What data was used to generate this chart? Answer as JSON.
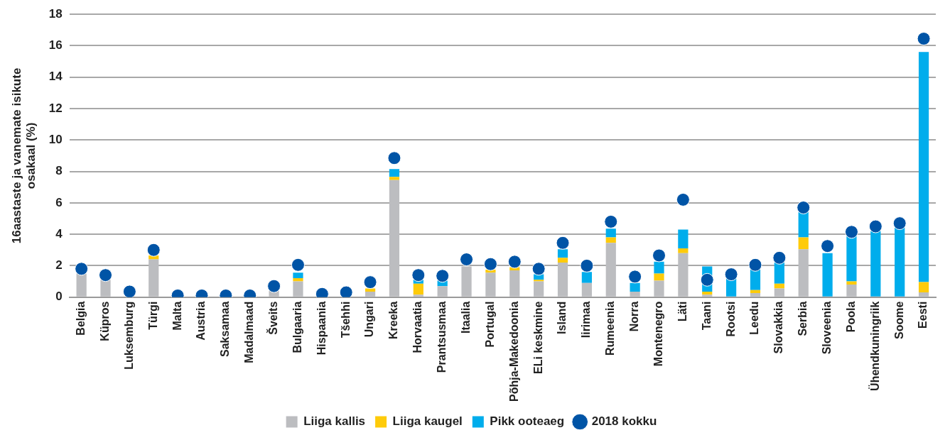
{
  "chart_data": {
    "type": "bar",
    "stacked": true,
    "ylabel": "16aastaste ja vanemate isikute\nosakaal (%)",
    "categories": [
      "Belgia",
      "Küpros",
      "Luksemburg",
      "Türgi",
      "Malta",
      "Austria",
      "Saksamaa",
      "Madalmaad",
      "Šveits",
      "Bulgaaria",
      "Hispaania",
      "Tšehhi",
      "Ungari",
      "Kreeka",
      "Horvaatia",
      "Prantsusmaa",
      "Itaalia",
      "Portugal",
      "Põhja-Makedoonia",
      "ELi keskmine",
      "Island",
      "Iirimaa",
      "Rumeenia",
      "Norra",
      "Montenegro",
      "Läti",
      "Taani",
      "Rootsi",
      "Leedu",
      "Slovakkia",
      "Serbia",
      "Sloveenia",
      "Poola",
      "Ühendkuningriik",
      "Soome",
      "Eesti"
    ],
    "series": [
      {
        "name": "Liiga kallis",
        "color": "#bcbdc0",
        "values": [
          1.5,
          1.1,
          0,
          2.4,
          0,
          0,
          0,
          0,
          0.4,
          1.0,
          0,
          0,
          0.35,
          7.45,
          0.15,
          0.7,
          1.95,
          1.55,
          1.7,
          1.0,
          2.2,
          0.9,
          3.45,
          0.35,
          1.05,
          2.8,
          0.15,
          0,
          0.25,
          0.55,
          3.05,
          0,
          0.8,
          0,
          0,
          0.3
        ]
      },
      {
        "name": "Liiga kaugel",
        "color": "#fecb0a",
        "values": [
          0,
          0,
          0,
          0.25,
          0,
          0,
          0,
          0,
          0,
          0.2,
          0,
          0,
          0.2,
          0.2,
          0.7,
          0,
          0,
          0.2,
          0.2,
          0.1,
          0.3,
          0,
          0.35,
          0,
          0.45,
          0.3,
          0.2,
          0,
          0.2,
          0.3,
          0.75,
          0,
          0.2,
          0,
          0,
          0.65
        ]
      },
      {
        "name": "Pikk ooteaeg",
        "color": "#00adec",
        "values": [
          0,
          0,
          0,
          0,
          0,
          0,
          0,
          0,
          0,
          0.35,
          0,
          0,
          0,
          0.5,
          0.25,
          0.35,
          null,
          0,
          0,
          0.35,
          0.55,
          0.7,
          0.55,
          0.55,
          0.75,
          1.2,
          1.6,
          1.25,
          1.3,
          1.35,
          1.6,
          2.8,
          2.95,
          4.2,
          4.45,
          14.65
        ]
      },
      {
        "name": "2018 kokku",
        "type": "scatter",
        "color": "#0054a6",
        "x": [
          "Belgia",
          "Küpros",
          "Luksemburg",
          "Türgi",
          "Malta",
          "Austria",
          "Saksamaa",
          "Madalmaad",
          "Šveits",
          "Bulgaaria",
          "Hispaania",
          "Tšehhi",
          "Ungari",
          "Kreeka",
          "Horvaatia",
          "Prantsusmaa",
          "Itaalia",
          "Portugal",
          "Põhja-Makedoonia",
          "ELi keskmine",
          "Island",
          "Iirimaa",
          "Rumeenia",
          "Norra",
          "Montenegro",
          "Läti",
          "Taani",
          "Rootsi",
          "Leedu",
          "Slovakkia",
          "Serbia",
          "Sloveenia",
          "Poola",
          "Ühendkuningriik",
          "Soome",
          "Eesti"
        ],
        "values": [
          1.8,
          1.4,
          0.35,
          3.0,
          0.1,
          0.1,
          0.1,
          0.1,
          0.7,
          2.05,
          0.2,
          0.3,
          0.95,
          8.85,
          1.4,
          1.35,
          2.4,
          2.1,
          2.25,
          1.8,
          3.45,
          2.0,
          4.8,
          1.3,
          2.65,
          6.2,
          1.1,
          1.45,
          2.05,
          2.5,
          5.7,
          3.25,
          4.15,
          4.5,
          4.7,
          16.45
        ]
      }
    ],
    "ylim": [
      0,
      18
    ],
    "yticks": [
      0,
      2,
      4,
      6,
      8,
      10,
      12,
      14,
      16,
      18
    ],
    "grid": "y",
    "legend": "bottom",
    "marker": "circle"
  }
}
